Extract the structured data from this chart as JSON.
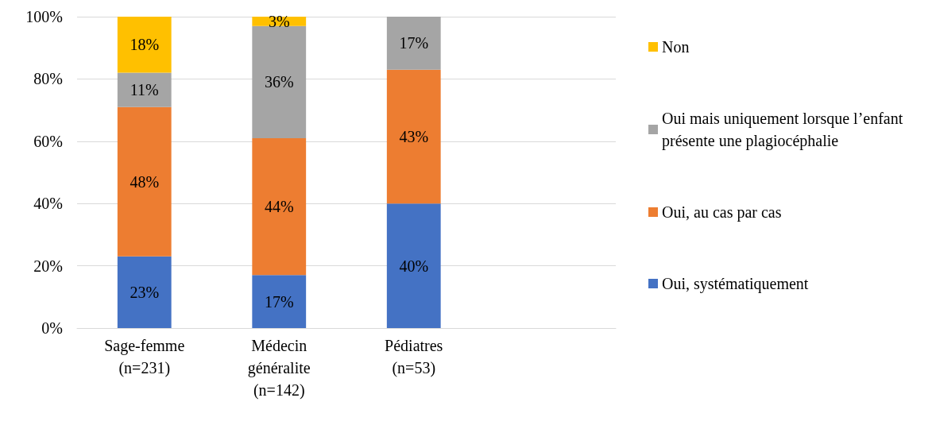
{
  "chart_data": {
    "type": "bar",
    "stacked": true,
    "categories": [
      "Sage-femme\n(n=231)",
      "Médecin\ngénéralite\n(n=142)",
      "Pédiatres\n(n=53)",
      null
    ],
    "series": [
      {
        "name": "Oui, systématiquement",
        "color": "#4472c4",
        "values": [
          23,
          17,
          40,
          null
        ],
        "value_labels": [
          "23%",
          "17%",
          "40%",
          null
        ]
      },
      {
        "name": "Oui, au cas par cas",
        "color": "#ed7d31",
        "values": [
          48,
          44,
          43,
          null
        ],
        "value_labels": [
          "48%",
          "44%",
          "43%",
          null
        ]
      },
      {
        "name": "Oui mais uniquement lorsque l’enfant présente une plagiocéphalie",
        "color": "#a5a5a5",
        "values": [
          11,
          36,
          17,
          null
        ],
        "value_labels": [
          "11%",
          "36%",
          "17%",
          null
        ]
      },
      {
        "name": "Non",
        "color": "#ffc000",
        "values": [
          18,
          3,
          null,
          null
        ],
        "value_labels": [
          "18%",
          "3%",
          null,
          null
        ]
      }
    ],
    "ylim": [
      0,
      100
    ],
    "yticks": [
      {
        "value": 0,
        "label": "0%"
      },
      {
        "value": 20,
        "label": "20%"
      },
      {
        "value": 40,
        "label": "40%"
      },
      {
        "value": 60,
        "label": "60%"
      },
      {
        "value": 80,
        "label": "80%"
      },
      {
        "value": 100,
        "label": "100%"
      }
    ],
    "grid": "y",
    "legend": "right"
  }
}
